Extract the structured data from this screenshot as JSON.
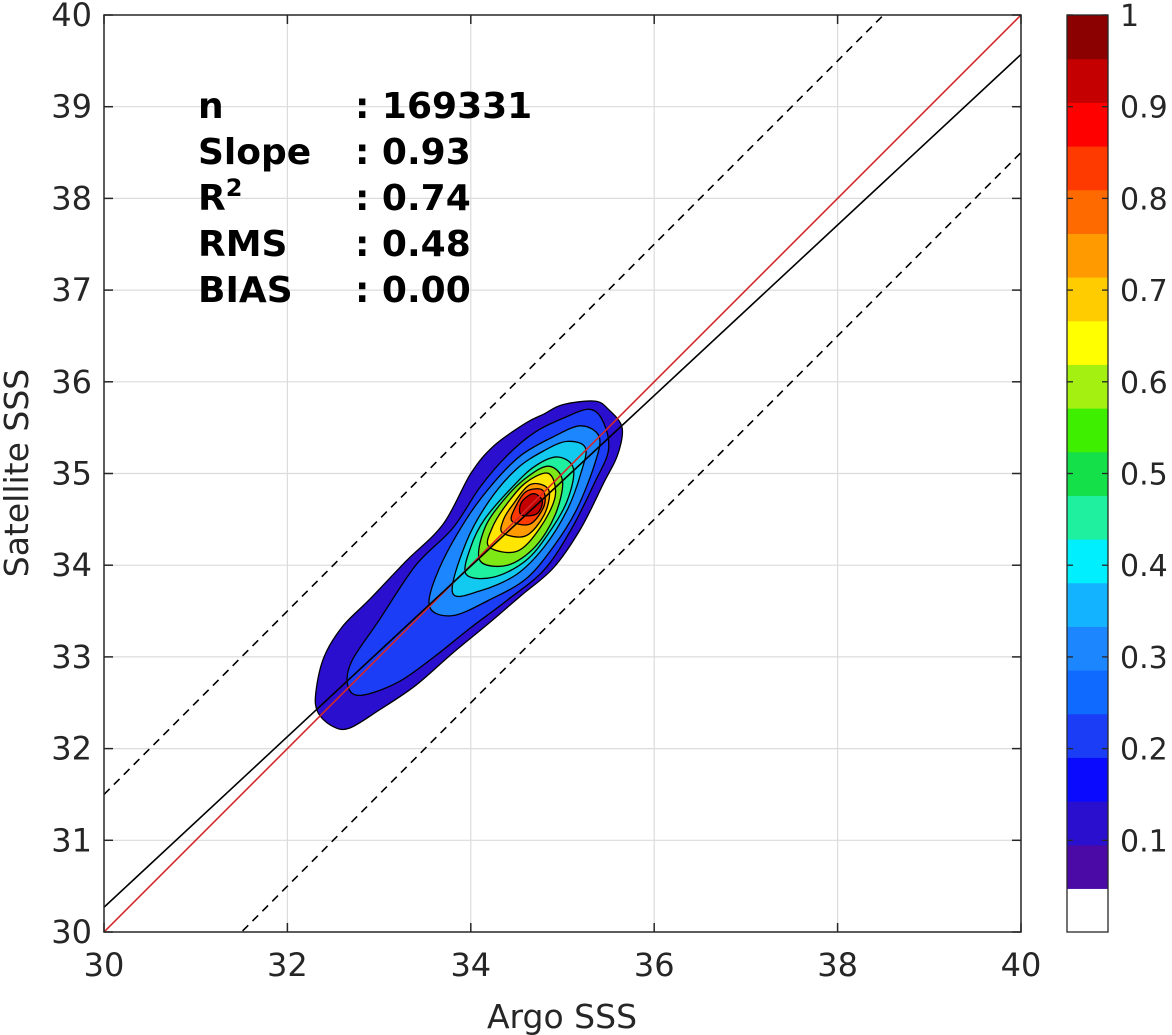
{
  "chart_data": {
    "type": "heatmap",
    "subtype": "filled-contour density scatter",
    "xlabel": "Argo SSS",
    "ylabel": "Satellite SSS",
    "xlim": [
      30,
      40
    ],
    "ylim": [
      30,
      40
    ],
    "xticks": [
      30,
      32,
      34,
      36,
      38,
      40
    ],
    "yticks": [
      30,
      31,
      32,
      33,
      34,
      35,
      36,
      37,
      38,
      39,
      40
    ],
    "grid": true,
    "stats": [
      {
        "label": "n",
        "value": ": 169331"
      },
      {
        "label": "Slope",
        "value": ": 0.93"
      },
      {
        "label": "R",
        "sup": "2",
        "value": ": 0.74"
      },
      {
        "label": "RMS",
        "value": ": 0.48"
      },
      {
        "label": "BIAS",
        "value": ": 0.00"
      }
    ],
    "reference_lines": [
      {
        "kind": "one-to-one",
        "color": "#d62728",
        "style": "solid",
        "points": [
          [
            30,
            30
          ],
          [
            40,
            40
          ]
        ]
      },
      {
        "kind": "regression",
        "color": "#000000",
        "style": "solid",
        "points": [
          [
            30,
            30.27
          ],
          [
            40,
            39.57
          ]
        ]
      },
      {
        "kind": "offset +1.5",
        "color": "#000000",
        "style": "dashed",
        "points": [
          [
            30,
            31.5
          ],
          [
            40,
            41.5
          ]
        ]
      },
      {
        "kind": "offset -1.5",
        "color": "#000000",
        "style": "dashed",
        "points": [
          [
            30,
            28.5
          ],
          [
            40,
            38.5
          ]
        ]
      }
    ],
    "density": {
      "center": [
        34.65,
        34.65
      ],
      "levels": [
        {
          "level": 0.05,
          "color": "#2b0fcf",
          "ring": [
            [
              32.31,
              32.61
            ],
            [
              32.33,
              32.4
            ],
            [
              32.48,
              32.25
            ],
            [
              32.67,
              32.22
            ],
            [
              33.0,
              32.42
            ],
            [
              33.4,
              32.69
            ],
            [
              33.8,
              33.04
            ],
            [
              34.2,
              33.37
            ],
            [
              34.55,
              33.67
            ],
            [
              34.9,
              33.97
            ],
            [
              35.2,
              34.4
            ],
            [
              35.45,
              34.9
            ],
            [
              35.6,
              35.2
            ],
            [
              35.65,
              35.5
            ],
            [
              35.5,
              35.7
            ],
            [
              35.35,
              35.79
            ],
            [
              35.0,
              35.75
            ],
            [
              34.8,
              35.65
            ],
            [
              34.6,
              35.55
            ],
            [
              34.25,
              35.3
            ],
            [
              34.0,
              35.0
            ],
            [
              33.7,
              34.45
            ],
            [
              33.3,
              34.05
            ],
            [
              32.9,
              33.63
            ],
            [
              32.6,
              33.33
            ],
            [
              32.4,
              33.0
            ]
          ]
        },
        {
          "level": 0.15,
          "color": "#1a3df5",
          "ring": [
            [
              32.66,
              32.68
            ],
            [
              32.8,
              32.58
            ],
            [
              33.2,
              32.72
            ],
            [
              33.6,
              33.0
            ],
            [
              34.0,
              33.32
            ],
            [
              34.4,
              33.62
            ],
            [
              34.8,
              33.95
            ],
            [
              35.1,
              34.4
            ],
            [
              35.35,
              34.9
            ],
            [
              35.5,
              35.25
            ],
            [
              35.45,
              35.55
            ],
            [
              35.3,
              35.7
            ],
            [
              35.0,
              35.6
            ],
            [
              34.7,
              35.45
            ],
            [
              34.4,
              35.2
            ],
            [
              34.1,
              34.85
            ],
            [
              33.8,
              34.4
            ],
            [
              33.4,
              34.0
            ],
            [
              33.0,
              33.4
            ],
            [
              32.7,
              32.95
            ]
          ]
        },
        {
          "level": 0.25,
          "color": "#1c86ff",
          "ring": [
            [
              33.55,
              33.55
            ],
            [
              33.8,
              33.45
            ],
            [
              34.2,
              33.62
            ],
            [
              34.6,
              33.85
            ],
            [
              34.9,
              34.2
            ],
            [
              35.15,
              34.6
            ],
            [
              35.35,
              35.1
            ],
            [
              35.4,
              35.4
            ],
            [
              35.2,
              35.52
            ],
            [
              34.9,
              35.4
            ],
            [
              34.55,
              35.2
            ],
            [
              34.25,
              34.9
            ],
            [
              33.95,
              34.5
            ],
            [
              33.65,
              33.95
            ]
          ]
        },
        {
          "level": 0.35,
          "color": "#12c9f0",
          "ring": [
            [
              33.8,
              33.7
            ],
            [
              34.1,
              33.72
            ],
            [
              34.5,
              33.9
            ],
            [
              34.8,
              34.2
            ],
            [
              35.05,
              34.6
            ],
            [
              35.2,
              35.0
            ],
            [
              35.25,
              35.28
            ],
            [
              35.05,
              35.35
            ],
            [
              34.8,
              35.25
            ],
            [
              34.5,
              35.05
            ],
            [
              34.2,
              34.7
            ],
            [
              33.95,
              34.25
            ]
          ]
        },
        {
          "level": 0.45,
          "color": "#1ef0a0",
          "ring": [
            [
              33.95,
              33.9
            ],
            [
              34.25,
              33.87
            ],
            [
              34.6,
              34.05
            ],
            [
              34.85,
              34.35
            ],
            [
              35.05,
              34.7
            ],
            [
              35.12,
              35.05
            ],
            [
              34.95,
              35.18
            ],
            [
              34.7,
              35.08
            ],
            [
              34.45,
              34.85
            ],
            [
              34.15,
              34.5
            ],
            [
              34.0,
              34.2
            ]
          ]
        },
        {
          "level": 0.55,
          "color": "#7ee817",
          "ring": [
            [
              34.1,
              34.05
            ],
            [
              34.4,
              34.0
            ],
            [
              34.7,
              34.2
            ],
            [
              34.92,
              34.55
            ],
            [
              35.0,
              34.92
            ],
            [
              34.85,
              35.08
            ],
            [
              34.6,
              34.95
            ],
            [
              34.35,
              34.7
            ],
            [
              34.15,
              34.4
            ]
          ]
        },
        {
          "level": 0.65,
          "color": "#ffe600",
          "ring": [
            [
              34.2,
              34.2
            ],
            [
              34.5,
              34.15
            ],
            [
              34.75,
              34.4
            ],
            [
              34.92,
              34.75
            ],
            [
              34.85,
              35.0
            ],
            [
              34.6,
              34.9
            ],
            [
              34.38,
              34.65
            ],
            [
              34.23,
              34.4
            ]
          ]
        },
        {
          "level": 0.75,
          "color": "#ff9a00",
          "ring": [
            [
              34.35,
              34.35
            ],
            [
              34.6,
              34.32
            ],
            [
              34.8,
              34.55
            ],
            [
              34.85,
              34.82
            ],
            [
              34.65,
              34.88
            ],
            [
              34.45,
              34.65
            ],
            [
              34.35,
              34.48
            ]
          ]
        },
        {
          "level": 0.85,
          "color": "#ff3a00",
          "ring": [
            [
              34.45,
              34.48
            ],
            [
              34.65,
              34.45
            ],
            [
              34.8,
              34.65
            ],
            [
              34.78,
              34.82
            ],
            [
              34.6,
              34.8
            ],
            [
              34.48,
              34.62
            ]
          ]
        },
        {
          "level": 0.95,
          "color": "#c40000",
          "ring": [
            [
              34.55,
              34.55
            ],
            [
              34.72,
              34.56
            ],
            [
              34.78,
              34.7
            ],
            [
              34.68,
              34.78
            ],
            [
              34.55,
              34.68
            ]
          ]
        }
      ]
    },
    "colorbar": {
      "range": [
        0,
        1
      ],
      "ticks": [
        0.1,
        0.2,
        0.3,
        0.4,
        0.5,
        0.6,
        0.7,
        0.8,
        0.9,
        1
      ],
      "tick_labels": [
        "0.1",
        "0.2",
        "0.3",
        "0.4",
        "0.5",
        "0.6",
        "0.7",
        "0.8",
        "0.9",
        "1"
      ],
      "colors": [
        "#ffffff",
        "#4b0aa6",
        "#2b0fcf",
        "#0a0aff",
        "#1a3df5",
        "#0f6bff",
        "#1c86ff",
        "#14b3ff",
        "#00efff",
        "#1ef0a0",
        "#14e04a",
        "#3ef000",
        "#a4f010",
        "#ffff00",
        "#ffcc00",
        "#ff9a00",
        "#ff6a00",
        "#ff3a00",
        "#ff0000",
        "#c40000",
        "#8b0000"
      ]
    }
  }
}
